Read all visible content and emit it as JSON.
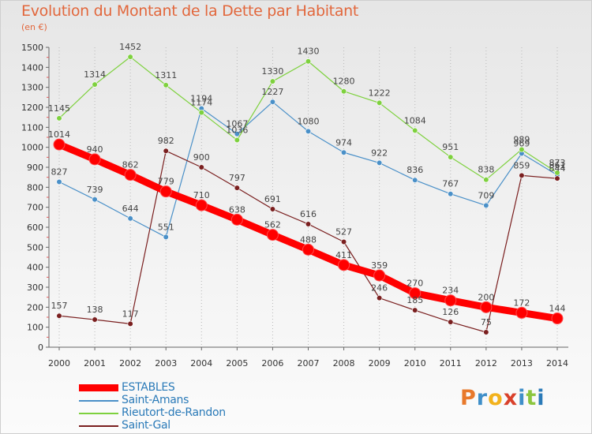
{
  "header": {
    "title": "Evolution du Montant de la Dette par Habitant",
    "subtitle": "(en €)"
  },
  "logo": {
    "text": "Proxiti",
    "colors": [
      "#e8792c",
      "#3f8fc9",
      "#f2b21c",
      "#d9412b",
      "#3f8fc9",
      "#8cc63f",
      "#2a7ab8"
    ]
  },
  "chart_data": {
    "type": "line",
    "title": "Evolution du Montant de la Dette par Habitant",
    "subtitle": "(en €)",
    "xlabel": "",
    "ylabel": "",
    "ylim": [
      0,
      1500
    ],
    "yticks": [
      "0",
      "100",
      "200",
      "300",
      "400",
      "500",
      "600",
      "700",
      "800",
      "900",
      "1000",
      "1100",
      "1200",
      "1300",
      "1400",
      "1500"
    ],
    "categories": [
      "2000",
      "2001",
      "2002",
      "2003",
      "2004",
      "2005",
      "2006",
      "2007",
      "2008",
      "2009",
      "2010",
      "2011",
      "2012",
      "2013",
      "2014"
    ],
    "grid": "vertical dotted",
    "legend_position": "bottom-left",
    "series": [
      {
        "name": "Saint-Amans",
        "color": "#4a90c8",
        "values": [
          827,
          739,
          644,
          551,
          1194,
          1067,
          1227,
          1080,
          974,
          922,
          836,
          767,
          709,
          969,
          861
        ]
      },
      {
        "name": "Rieutort-de-Randon",
        "color": "#7ed13e",
        "values": [
          1145,
          1314,
          1452,
          1311,
          1174,
          1036,
          1330,
          1430,
          1280,
          1222,
          1084,
          951,
          838,
          989,
          873
        ]
      },
      {
        "name": "Saint-Gal",
        "color": "#7a1f1f",
        "values": [
          157,
          138,
          117,
          982,
          900,
          797,
          691,
          616,
          527,
          246,
          185,
          126,
          75,
          859,
          844
        ]
      },
      {
        "name": "ESTABLES",
        "color": "#ff0000",
        "values": [
          1014,
          940,
          862,
          779,
          710,
          638,
          562,
          488,
          411,
          359,
          270,
          234,
          200,
          172,
          144
        ]
      }
    ],
    "labels": {
      "Saint-Amans": [
        "827",
        "739",
        "644",
        "551",
        "1194",
        "1067",
        "1227",
        "1080",
        "974",
        "922",
        "836",
        "767",
        "709",
        "969",
        "861"
      ],
      "Rieutort-de-Randon": [
        "1145",
        "1314",
        "1452",
        "1311",
        "1174",
        "1036",
        "1330",
        "1430",
        "1280",
        "1222",
        "1084",
        "951",
        "838",
        "989",
        "873"
      ],
      "Saint-Gal": [
        "157",
        "138",
        "117",
        "982",
        "900",
        "797",
        "691",
        "616",
        "527",
        "246",
        "185",
        "126",
        "75",
        "859",
        "844"
      ],
      "ESTABLES": [
        "1014",
        "940",
        "862",
        "779",
        "710",
        "638",
        "562",
        "488",
        "411",
        "359",
        "270",
        "234",
        "200",
        "172",
        "144"
      ]
    },
    "legend_order": [
      "ESTABLES",
      "Saint-Amans",
      "Rieutort-de-Randon",
      "Saint-Gal"
    ]
  }
}
